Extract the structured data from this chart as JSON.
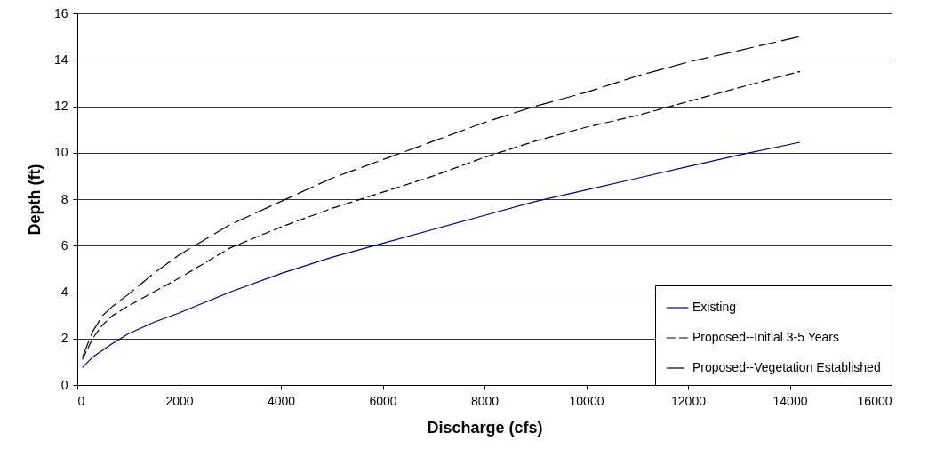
{
  "chart_data": {
    "type": "line",
    "xlabel": "Discharge (cfs)",
    "ylabel": "Depth (ft)",
    "xlim": [
      0,
      16000
    ],
    "ylim": [
      0,
      16
    ],
    "xticks": [
      0,
      2000,
      4000,
      6000,
      8000,
      10000,
      12000,
      14000,
      16000
    ],
    "yticks": [
      0,
      2,
      4,
      6,
      8,
      10,
      12,
      14,
      16
    ],
    "grid": "y",
    "legend": "bottom right",
    "marker": "none",
    "series": [
      {
        "name": "Existing",
        "color": "#000080",
        "line_style": "solid",
        "x": [
          100,
          300,
          500,
          700,
          1000,
          1500,
          2000,
          3000,
          4000,
          5000,
          6000,
          7000,
          8000,
          9000,
          10000,
          11000,
          12000,
          13000,
          14200
        ],
        "values": [
          0.75,
          1.2,
          1.5,
          1.8,
          2.2,
          2.7,
          3.1,
          4.0,
          4.8,
          5.5,
          6.1,
          6.7,
          7.3,
          7.9,
          8.4,
          8.9,
          9.4,
          9.9,
          10.45
        ]
      },
      {
        "name": "Proposed--Initial 3-5 Years",
        "color": "#000000",
        "line_style": "dashed",
        "x": [
          100,
          300,
          500,
          700,
          1000,
          1500,
          2000,
          3000,
          4000,
          5000,
          6000,
          7000,
          8000,
          9000,
          10000,
          11000,
          12000,
          13000,
          14200
        ],
        "values": [
          1.1,
          2.0,
          2.6,
          3.0,
          3.4,
          4.0,
          4.6,
          5.9,
          6.8,
          7.6,
          8.3,
          9.0,
          9.8,
          10.5,
          11.1,
          11.6,
          12.2,
          12.8,
          13.5
        ]
      },
      {
        "name": "Proposed--Vegetation Established",
        "color": "#000000",
        "line_style": "dashed",
        "x": [
          100,
          300,
          500,
          700,
          1000,
          1500,
          2000,
          3000,
          4000,
          5000,
          6000,
          7000,
          8000,
          9000,
          10000,
          11000,
          12000,
          13000,
          14200
        ],
        "values": [
          1.2,
          2.3,
          3.0,
          3.4,
          3.9,
          4.8,
          5.6,
          6.9,
          7.9,
          8.9,
          9.7,
          10.5,
          11.3,
          12.0,
          12.6,
          13.3,
          13.9,
          14.4,
          15.0
        ]
      }
    ]
  }
}
